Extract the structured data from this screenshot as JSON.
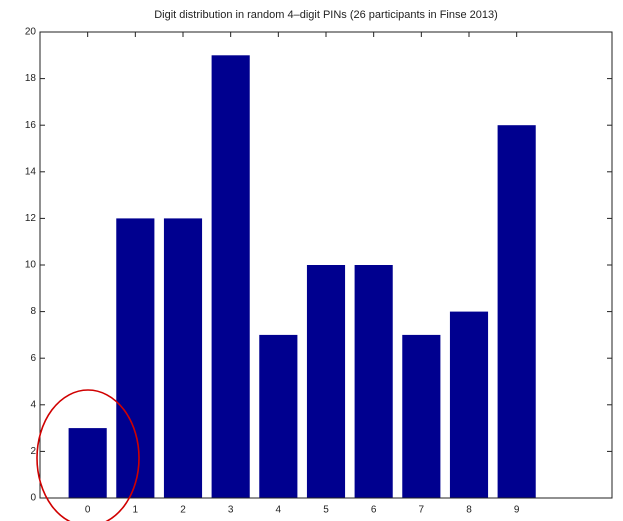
{
  "chart_data": {
    "type": "bar",
    "title": "Digit distribution in random 4–digit PINs (26 participants in Finse 2013)",
    "x": [
      0,
      1,
      2,
      3,
      4,
      5,
      6,
      7,
      8,
      9
    ],
    "values": [
      3,
      12,
      12,
      19,
      7,
      10,
      10,
      7,
      8,
      16
    ],
    "color": "#00008f",
    "xlim": [
      -1,
      11
    ],
    "xticks": [
      0,
      1,
      2,
      3,
      4,
      5,
      6,
      7,
      8,
      9
    ],
    "ylim": [
      0,
      20
    ],
    "yticks": [
      0,
      2,
      4,
      6,
      8,
      10,
      12,
      14,
      16,
      18,
      20
    ],
    "grid": false
  }
}
